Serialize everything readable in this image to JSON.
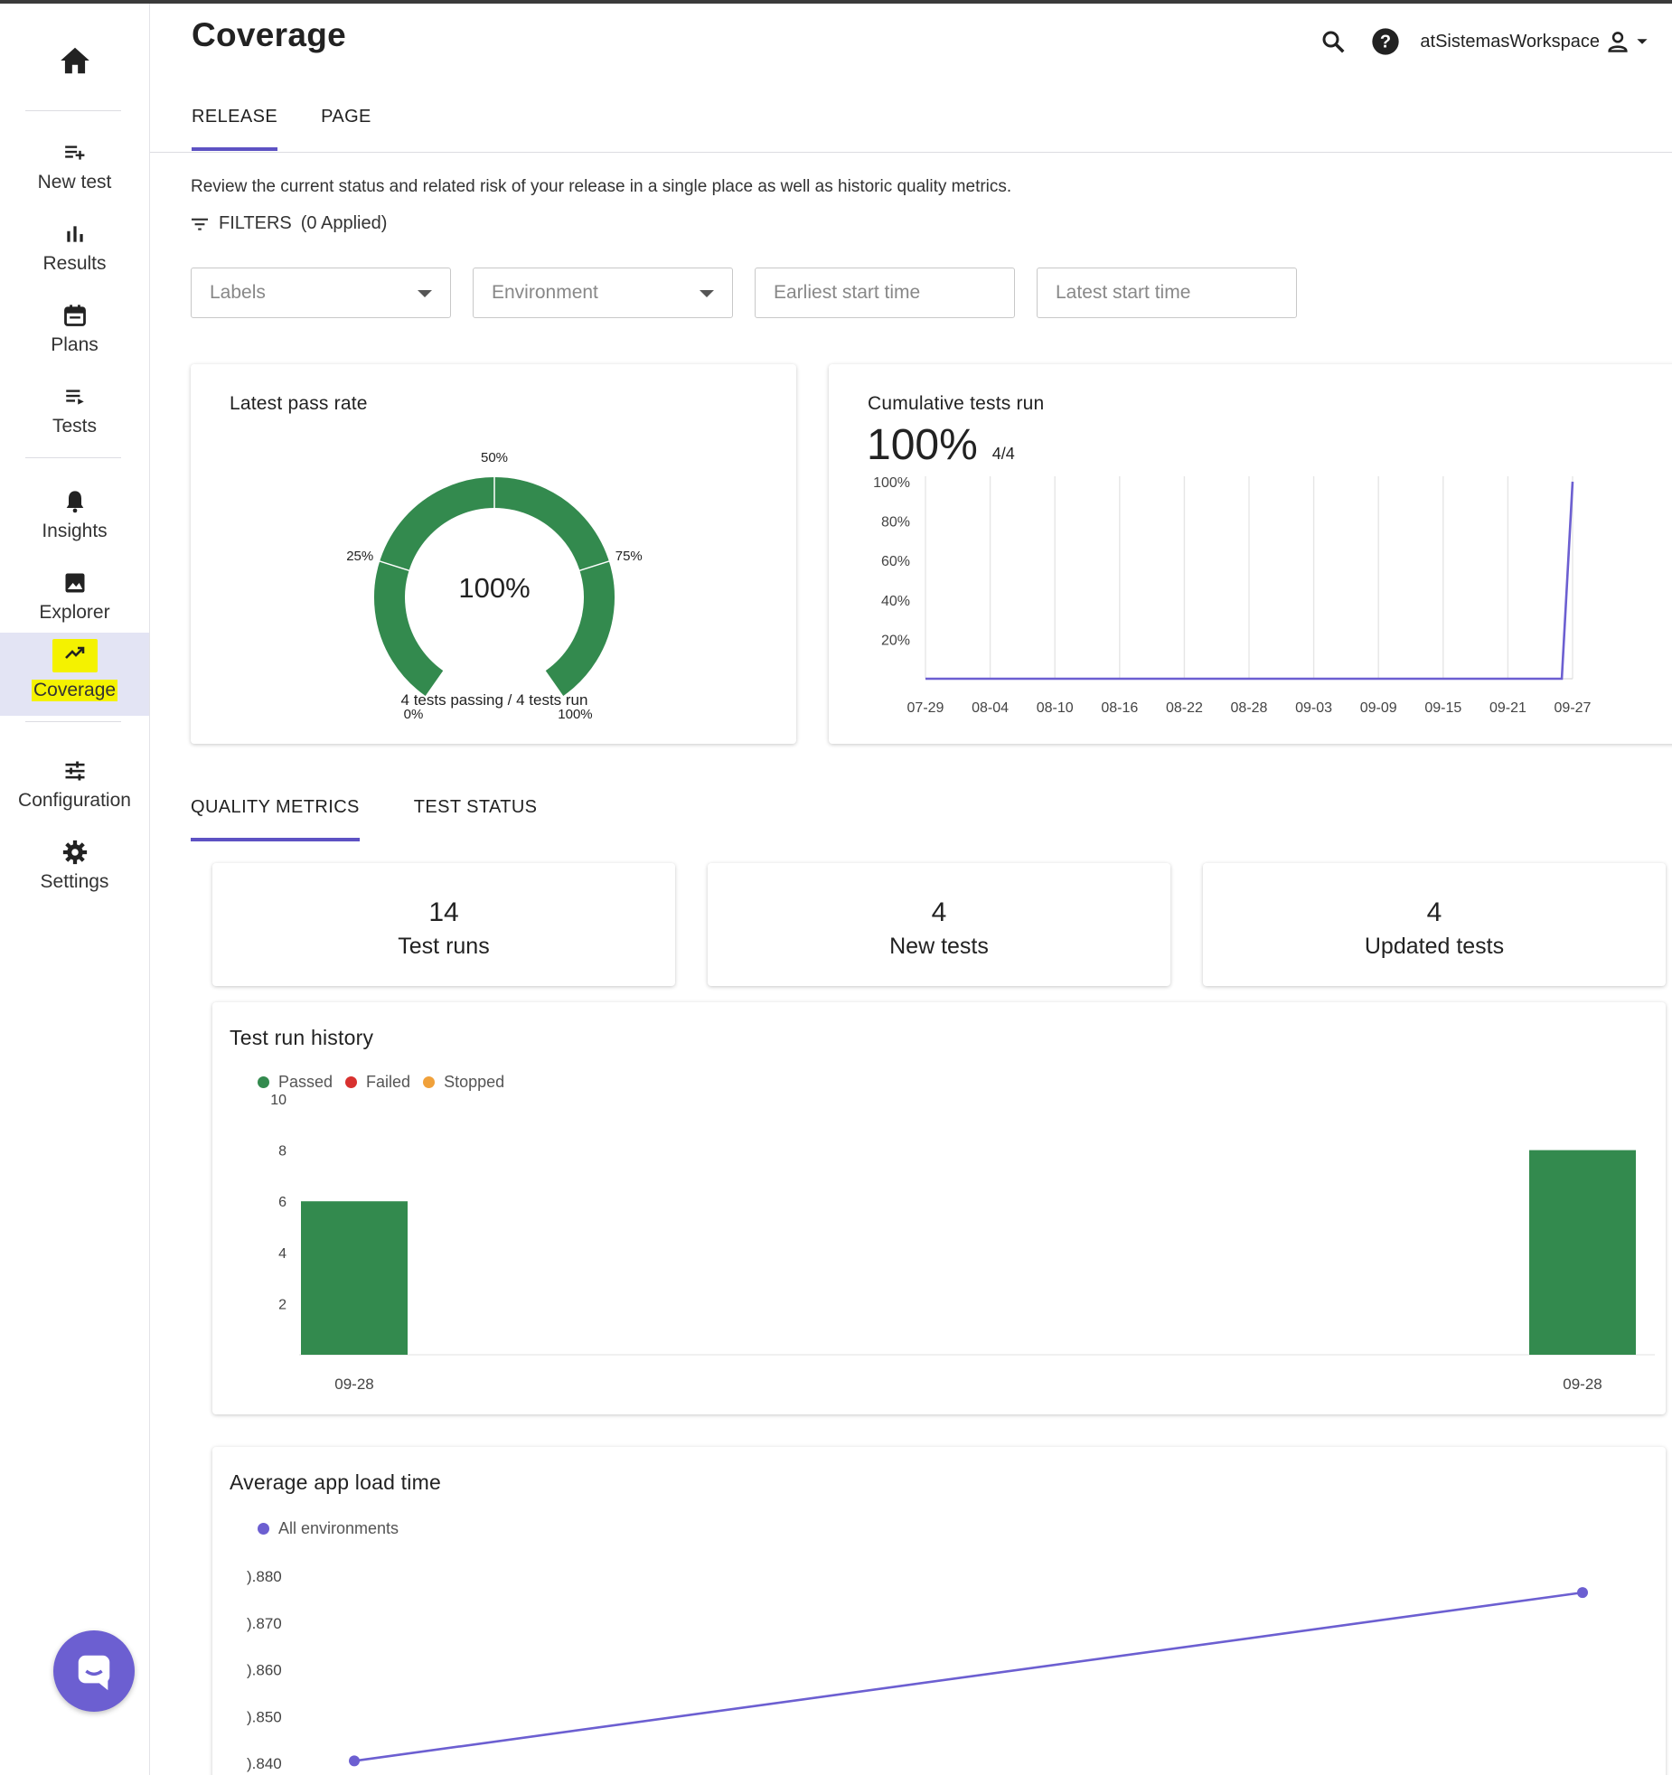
{
  "page": {
    "title": "Coverage"
  },
  "header": {
    "workspace": "atSistemasWorkspace"
  },
  "sidebar": {
    "items": [
      {
        "label": "New test"
      },
      {
        "label": "Results"
      },
      {
        "label": "Plans"
      },
      {
        "label": "Tests"
      },
      {
        "label": "Insights"
      },
      {
        "label": "Explorer"
      },
      {
        "label": "Coverage"
      },
      {
        "label": "Configuration"
      },
      {
        "label": "Settings"
      }
    ],
    "active": "Coverage"
  },
  "main_tabs": [
    {
      "label": "RELEASE"
    },
    {
      "label": "PAGE"
    }
  ],
  "description": "Review the current status and related risk of your release in a single place as well as historic quality metrics.",
  "filters": {
    "label": "FILTERS",
    "applied": "(0 Applied)",
    "labels_placeholder": "Labels",
    "environment_placeholder": "Environment",
    "earliest_placeholder": "Earliest start time",
    "latest_placeholder": "Latest start time"
  },
  "pass_rate": {
    "title": "Latest pass rate",
    "value_text": "100%",
    "value": 100,
    "summary": "4 tests passing / 4 tests run",
    "ticks": [
      "0%",
      "25%",
      "50%",
      "75%",
      "100%"
    ],
    "color": "#338a4e"
  },
  "cumulative": {
    "title": "Cumulative tests run",
    "value_text": "100%",
    "count_text": "4/4",
    "line_color": "#6c5fd1"
  },
  "quality_tabs": [
    {
      "label": "QUALITY METRICS"
    },
    {
      "label": "TEST STATUS"
    }
  ],
  "metrics": [
    {
      "value": "14",
      "label": "Test runs"
    },
    {
      "value": "4",
      "label": "New tests"
    },
    {
      "value": "4",
      "label": "Updated tests"
    }
  ],
  "history": {
    "title": "Test run history",
    "legend": [
      {
        "name": "Passed",
        "color": "#338a4e"
      },
      {
        "name": "Failed",
        "color": "#d8312f"
      },
      {
        "name": "Stopped",
        "color": "#f0a13b"
      }
    ]
  },
  "load_time": {
    "title": "Average app load time",
    "legend": [
      {
        "name": "All environments",
        "color": "#6c5fd1"
      }
    ]
  },
  "chart_data": [
    {
      "type": "line",
      "title": "Cumulative tests run",
      "x": [
        "07-29",
        "08-04",
        "08-10",
        "08-16",
        "08-22",
        "08-28",
        "09-03",
        "09-09",
        "09-15",
        "09-21",
        "09-27"
      ],
      "y_ticks": [
        "100%",
        "80%",
        "60%",
        "40%",
        "20%"
      ],
      "ylim": [
        0,
        100
      ],
      "series": [
        {
          "points": [
            [
              "07-29",
              0
            ],
            [
              "09-26",
              0
            ],
            [
              "09-27",
              100
            ]
          ]
        }
      ],
      "grid": "vertical"
    },
    {
      "type": "bar",
      "title": "Test run history",
      "categories": [
        "09-28",
        "09-28"
      ],
      "y_ticks": [
        "10",
        "8",
        "6",
        "4",
        "2"
      ],
      "ylim": [
        0,
        10
      ],
      "series": [
        {
          "name": "Passed",
          "values": [
            6,
            8
          ]
        },
        {
          "name": "Failed",
          "values": [
            0,
            0
          ]
        },
        {
          "name": "Stopped",
          "values": [
            0,
            0
          ]
        }
      ]
    },
    {
      "type": "line",
      "title": "Average app load time",
      "y_ticks": [
        ").880",
        ").870",
        ").860",
        ").850",
        ").840"
      ],
      "ylim": [
        0.84,
        0.88
      ],
      "series": [
        {
          "name": "All environments",
          "values": [
            0.8405,
            0.8765
          ]
        }
      ]
    }
  ]
}
